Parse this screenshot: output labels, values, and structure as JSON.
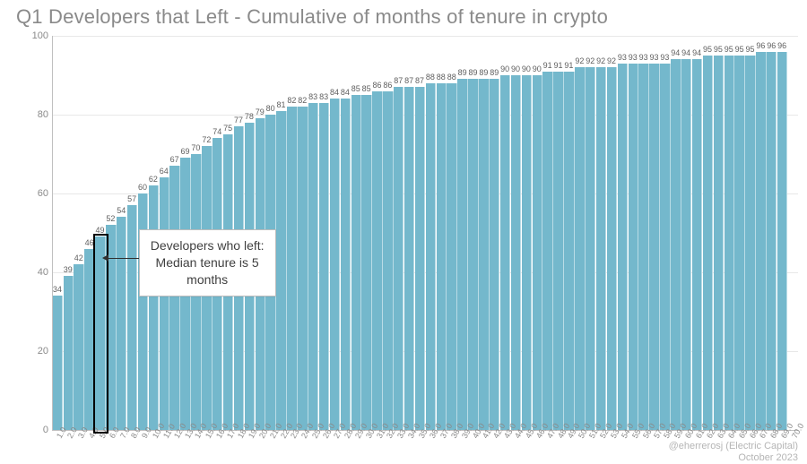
{
  "title": "Q1 Developers that Left - Cumulative of months of tenure in crypto",
  "attribution_line1": "@eherrerosj (Electric Capital)",
  "attribution_line2": "October 2023",
  "chart": {
    "type": "bar",
    "ylim": [
      0,
      100
    ],
    "yticks": [
      0,
      20,
      40,
      60,
      80,
      100
    ],
    "bar_color": "#74b8cc",
    "grid_color": "#e8e8e8",
    "background_color": "#ffffff",
    "axis_color": "#c0c0c0",
    "label_color": "#606060",
    "tick_color": "#8a8a8a",
    "title_color": "#8a8a8a",
    "title_fontsize": 22,
    "bar_label_fontsize": 9,
    "x_tick_fontsize": 9,
    "x_tick_rotation": -60,
    "bar_width_ratio": 0.88,
    "categories": [
      "1.0",
      "2.0",
      "3.0",
      "4.0",
      "5.0",
      "6.0",
      "7.0",
      "8.0",
      "9.0",
      "10.0",
      "11.0",
      "12.0",
      "13.0",
      "14.0",
      "15.0",
      "16.0",
      "17.0",
      "18.0",
      "19.0",
      "20.0",
      "21.0",
      "22.0",
      "23.0",
      "24.0",
      "25.0",
      "26.0",
      "27.0",
      "28.0",
      "29.0",
      "30.0",
      "31.0",
      "32.0",
      "33.0",
      "34.0",
      "35.0",
      "36.0",
      "37.0",
      "38.0",
      "39.0",
      "40.0",
      "41.0",
      "42.0",
      "43.0",
      "44.0",
      "45.0",
      "46.0",
      "47.0",
      "48.0",
      "49.0",
      "50.0",
      "51.0",
      "52.0",
      "53.0",
      "54.0",
      "55.0",
      "56.0",
      "57.0",
      "58.0",
      "59.0",
      "60.0",
      "61.0",
      "62.0",
      "63.0",
      "64.0",
      "65.0",
      "66.0",
      "67.0",
      "68.0",
      "69.0"
    ],
    "values": [
      34,
      39,
      42,
      46,
      49,
      52,
      54,
      57,
      60,
      62,
      64,
      67,
      69,
      70,
      72,
      74,
      75,
      77,
      78,
      79,
      80,
      81,
      82,
      82,
      83,
      83,
      84,
      84,
      85,
      85,
      86,
      86,
      87,
      87,
      87,
      88,
      88,
      88,
      89,
      89,
      89,
      89,
      90,
      90,
      90,
      90,
      91,
      91,
      91,
      92,
      92,
      92,
      92,
      93,
      93,
      93,
      93,
      93,
      94,
      94,
      94,
      95,
      95,
      95,
      95,
      95,
      96,
      96,
      96
    ],
    "extra_x_ticks": [
      "70.0"
    ],
    "highlight": {
      "index": 4,
      "border_color": "#000000",
      "border_width": 2
    },
    "callout": {
      "text_lines": [
        "Developers who left:",
        "Median tenure is 5",
        "months"
      ],
      "box_border": "#bdbdbd",
      "box_bg": "#ffffff",
      "text_color": "#404040",
      "fontsize": 14,
      "arrow_color": "#303030"
    }
  }
}
